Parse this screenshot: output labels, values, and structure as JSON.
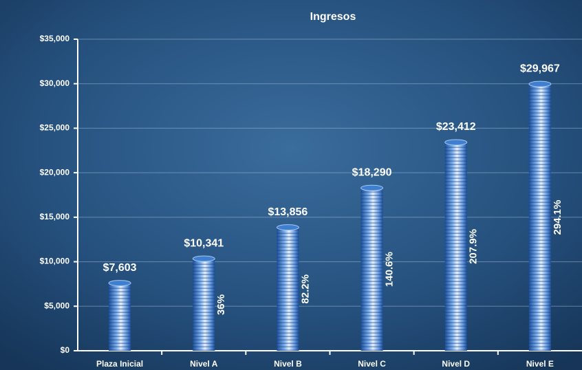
{
  "chart_data": {
    "type": "bar",
    "title": "Ingresos",
    "categories": [
      "Plaza Inicial",
      "Nivel A",
      "Nivel B",
      "Nivel C",
      "Nivel D",
      "Nivel E"
    ],
    "values": [
      7603,
      10341,
      13856,
      18290,
      23412,
      29967
    ],
    "value_labels": [
      "$7,603",
      "$10,341",
      "$13,856",
      "$18,290",
      "$23,412",
      "$29,967"
    ],
    "growth_labels": [
      null,
      "36%",
      "82.2%",
      "140.6%",
      "207.9%",
      "294.1%"
    ],
    "color": "#3f7fd0",
    "ylim": [
      0,
      35000
    ],
    "yticks": [
      {
        "value": 0,
        "label": "$0"
      },
      {
        "value": 5000,
        "label": "$5,000"
      },
      {
        "value": 10000,
        "label": "$10,000"
      },
      {
        "value": 15000,
        "label": "$15,000"
      },
      {
        "value": 20000,
        "label": "$20,000"
      },
      {
        "value": 25000,
        "label": "$25,000"
      },
      {
        "value": 30000,
        "label": "$30,000"
      },
      {
        "value": 35000,
        "label": "$35,000"
      }
    ],
    "grid": true
  }
}
